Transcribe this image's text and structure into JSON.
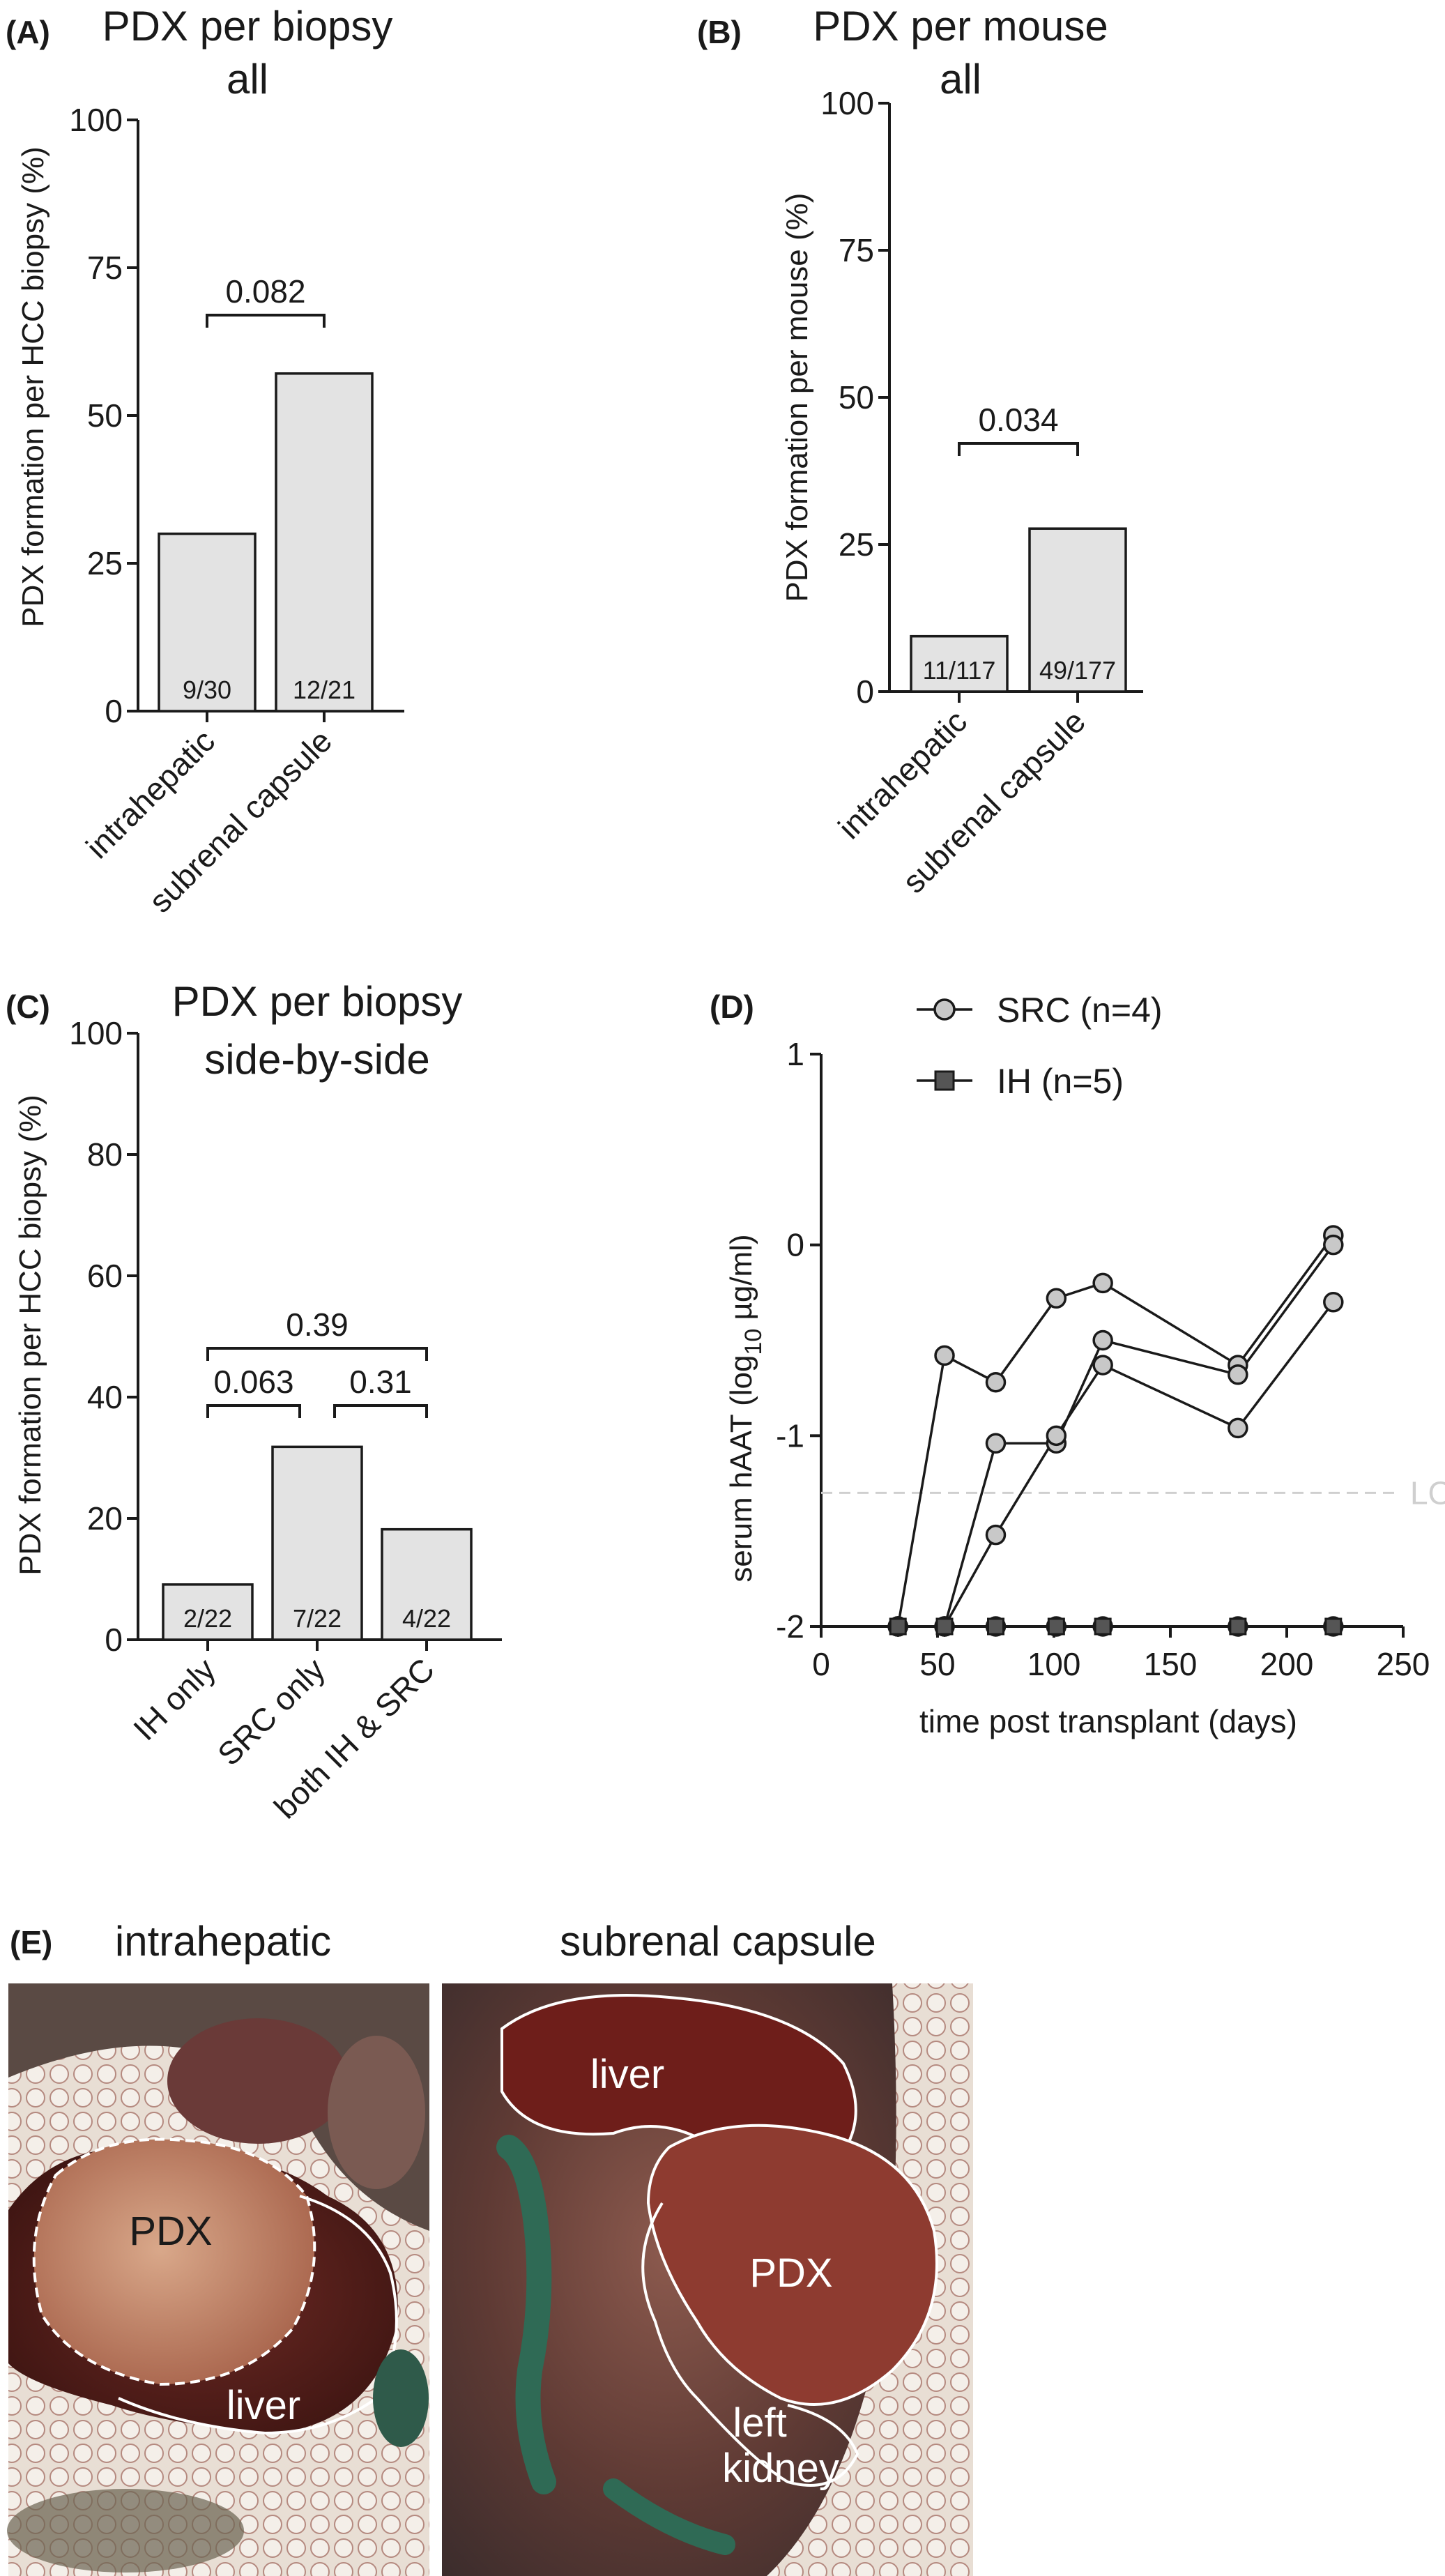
{
  "colors": {
    "bar_fill": "#e3e3e3",
    "ink": "#1a1a1a",
    "dot_fill": "#c8c8c8",
    "square_fill": "#555555",
    "loq": "#cfcfcf"
  },
  "chart_data": [
    {
      "id": "A",
      "panel_label": "(A)",
      "type": "bar",
      "title": [
        "PDX per biopsy",
        "all"
      ],
      "ylabel": "PDX formation per HCC biopsy (%)",
      "ylim": [
        0,
        100
      ],
      "yticks": [
        "0",
        "25",
        "50",
        "75",
        "100"
      ],
      "categories": [
        "intrahepatic",
        "subrenal capsule"
      ],
      "values": [
        30,
        57.1
      ],
      "bar_labels": [
        "9/30",
        "12/21"
      ],
      "comparisons": [
        {
          "from": 0,
          "to": 1,
          "label": "0.082"
        }
      ]
    },
    {
      "id": "B",
      "panel_label": "(B)",
      "type": "bar",
      "title": [
        "PDX per mouse",
        "all"
      ],
      "ylabel": "PDX formation per mouse (%)",
      "ylim": [
        0,
        100
      ],
      "yticks": [
        "0",
        "25",
        "50",
        "75",
        "100"
      ],
      "categories": [
        "intrahepatic",
        "subrenal capsule"
      ],
      "values": [
        9.4,
        27.7
      ],
      "bar_labels": [
        "11/117",
        "49/177"
      ],
      "comparisons": [
        {
          "from": 0,
          "to": 1,
          "label": "0.034"
        }
      ]
    },
    {
      "id": "C",
      "panel_label": "(C)",
      "type": "bar",
      "title": [
        "PDX per biopsy",
        "side-by-side"
      ],
      "ylabel": "PDX formation per HCC biopsy (%)",
      "ylim": [
        0,
        100
      ],
      "yticks": [
        "0",
        "20",
        "40",
        "60",
        "80",
        "100"
      ],
      "categories": [
        "IH only",
        "SRC only",
        "both IH & SRC"
      ],
      "values": [
        9.1,
        31.8,
        18.2
      ],
      "bar_labels": [
        "2/22",
        "7/22",
        "4/22"
      ],
      "comparisons": [
        {
          "from": 0,
          "to": 1,
          "label": "0.063"
        },
        {
          "from": 1,
          "to": 2,
          "label": "0.31"
        },
        {
          "from": 0,
          "to": 2,
          "label": "0.39"
        }
      ]
    },
    {
      "id": "D",
      "panel_label": "(D)",
      "type": "line",
      "xlabel": "time post transplant (days)",
      "ylabel_parts": [
        "serum hAAT (log",
        "10",
        " µg/ml)"
      ],
      "xlim": [
        0,
        250
      ],
      "ylim": [
        -2,
        1
      ],
      "xticks": [
        "0",
        "50",
        "100",
        "150",
        "200",
        "250"
      ],
      "yticks": [
        "-2",
        "-1",
        "0",
        "1"
      ],
      "loq": {
        "value": -1.3,
        "label": "LOQ"
      },
      "legend": [
        {
          "name": "SRC (n=4)",
          "marker": "circle"
        },
        {
          "name": "IH (n=5)",
          "marker": "square"
        }
      ],
      "series": [
        {
          "group": "SRC",
          "x": [
            33,
            53,
            75,
            101,
            121,
            179,
            220
          ],
          "y": [
            -2,
            -0.58,
            -0.72,
            -0.28,
            -0.2,
            -0.63,
            0.05
          ]
        },
        {
          "group": "SRC",
          "x": [
            33,
            53,
            75,
            101,
            121,
            179,
            220
          ],
          "y": [
            -2,
            -2,
            -1.04,
            -1.04,
            -0.5,
            -0.68,
            0.0
          ]
        },
        {
          "group": "SRC",
          "x": [
            33,
            53,
            75,
            101,
            121,
            179,
            220
          ],
          "y": [
            -2,
            -2,
            -1.52,
            -1.0,
            -0.63,
            -0.96,
            -0.3
          ]
        },
        {
          "group": "SRC",
          "x": [
            33,
            53,
            75,
            101,
            121,
            179,
            220
          ],
          "y": [
            -2,
            -2,
            -2,
            -2,
            -2,
            -2,
            -2
          ]
        },
        {
          "group": "IH",
          "x": [
            33,
            53,
            75,
            101,
            121,
            179,
            220
          ],
          "y": [
            -2,
            -2,
            -2,
            -2,
            -2,
            -2,
            -2
          ]
        }
      ]
    }
  ],
  "panel_e": {
    "label": "(E)",
    "left_title": "intrahepatic",
    "right_title": "subrenal capsule",
    "left_labels": {
      "pdx": "PDX",
      "liver": "liver"
    },
    "right_labels": {
      "liver": "liver",
      "pdx": "PDX",
      "kidney_1": "left",
      "kidney_2": "kidney"
    }
  }
}
